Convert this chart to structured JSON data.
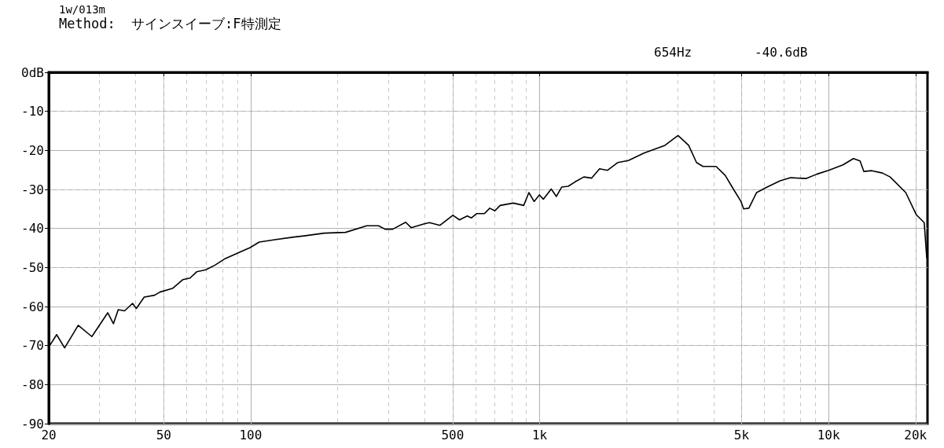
{
  "chart_data": {
    "type": "line",
    "title": "1w/013m",
    "subtitle": "Method:  サインスイーブ:F特測定",
    "annotations": [
      "654Hz",
      "-40.6dB"
    ],
    "log": "x",
    "grid": true,
    "marker": "none",
    "line_style": "solid",
    "xlim": [
      20,
      22000
    ],
    "xticks": [
      20,
      50,
      100,
      500,
      {
        "value": 1000,
        "label": "1k"
      },
      {
        "value": 5000,
        "label": "5k"
      },
      {
        "value": 10000,
        "label": "10k"
      },
      {
        "value": 20000,
        "label": "20k"
      }
    ],
    "ylim": [
      -90,
      0
    ],
    "yticks": [
      -90,
      -80,
      -70,
      -60,
      -50,
      -40,
      -30,
      -20,
      -10,
      {
        "value": 0,
        "label": "0dB"
      }
    ],
    "series": [
      {
        "color": "#000000",
        "x": [
          20,
          21.3,
          22.7,
          25.3,
          28.2,
          32,
          33.5,
          34.8,
          36.6,
          39,
          40.2,
          42.8,
          46.5,
          48.5,
          53.8,
          58.3,
          61.7,
          65,
          69.9,
          75.2,
          81.7,
          92.7,
          99.6,
          107,
          121,
          141,
          153,
          180,
          213,
          252,
          277,
          292,
          310,
          344,
          359,
          399,
          416,
          452,
          501,
          528,
          562,
          580,
          605,
          644,
          672,
          700,
          730,
          811,
          881,
          918,
          957,
          998,
          1030,
          1097,
          1143,
          1192,
          1256,
          1324,
          1423,
          1514,
          1613,
          1718,
          1867,
          2028,
          2297,
          2715,
          3013,
          3279,
          3491,
          3676,
          4080,
          4388,
          4674,
          4978,
          5083,
          5299,
          5637,
          6128,
          6800,
          7398,
          8377,
          9100,
          10000,
          11220,
          12190,
          12850,
          13250,
          14120,
          15350,
          16330,
          18500,
          20130,
          21430,
          21870
        ],
        "values": [
          -70.4,
          -67.2,
          -70.6,
          -64.8,
          -67.7,
          -61.6,
          -64.4,
          -60.8,
          -61.1,
          -59.2,
          -60.5,
          -57.6,
          -57.1,
          -56.3,
          -55.3,
          -53.1,
          -52.7,
          -51.1,
          -50.6,
          -49.4,
          -47.7,
          -45.9,
          -44.9,
          -43.5,
          -42.9,
          -42.2,
          -41.9,
          -41.2,
          -41,
          -39.3,
          -39.3,
          -40.2,
          -40.2,
          -38.4,
          -39.8,
          -38.8,
          -38.5,
          -39.2,
          -36.6,
          -37.8,
          -36.8,
          -37.3,
          -36.2,
          -36.2,
          -34.8,
          -35.5,
          -34.1,
          -33.5,
          -34.1,
          -30.8,
          -33.1,
          -31.4,
          -32.5,
          -29.9,
          -31.8,
          -29.4,
          -29.2,
          -28.1,
          -26.8,
          -27.1,
          -24.7,
          -25.1,
          -23.1,
          -22.6,
          -20.7,
          -18.7,
          -16.2,
          -18.7,
          -23.1,
          -24.1,
          -24.1,
          -26.4,
          -29.8,
          -33.1,
          -35,
          -34.8,
          -30.8,
          -29.4,
          -27.8,
          -27,
          -27.2,
          -26.1,
          -25.1,
          -23.7,
          -22.1,
          -22.7,
          -25.4,
          -25.2,
          -25.8,
          -26.8,
          -30.8,
          -36.5,
          -38.5,
          -47.5
        ]
      }
    ]
  }
}
